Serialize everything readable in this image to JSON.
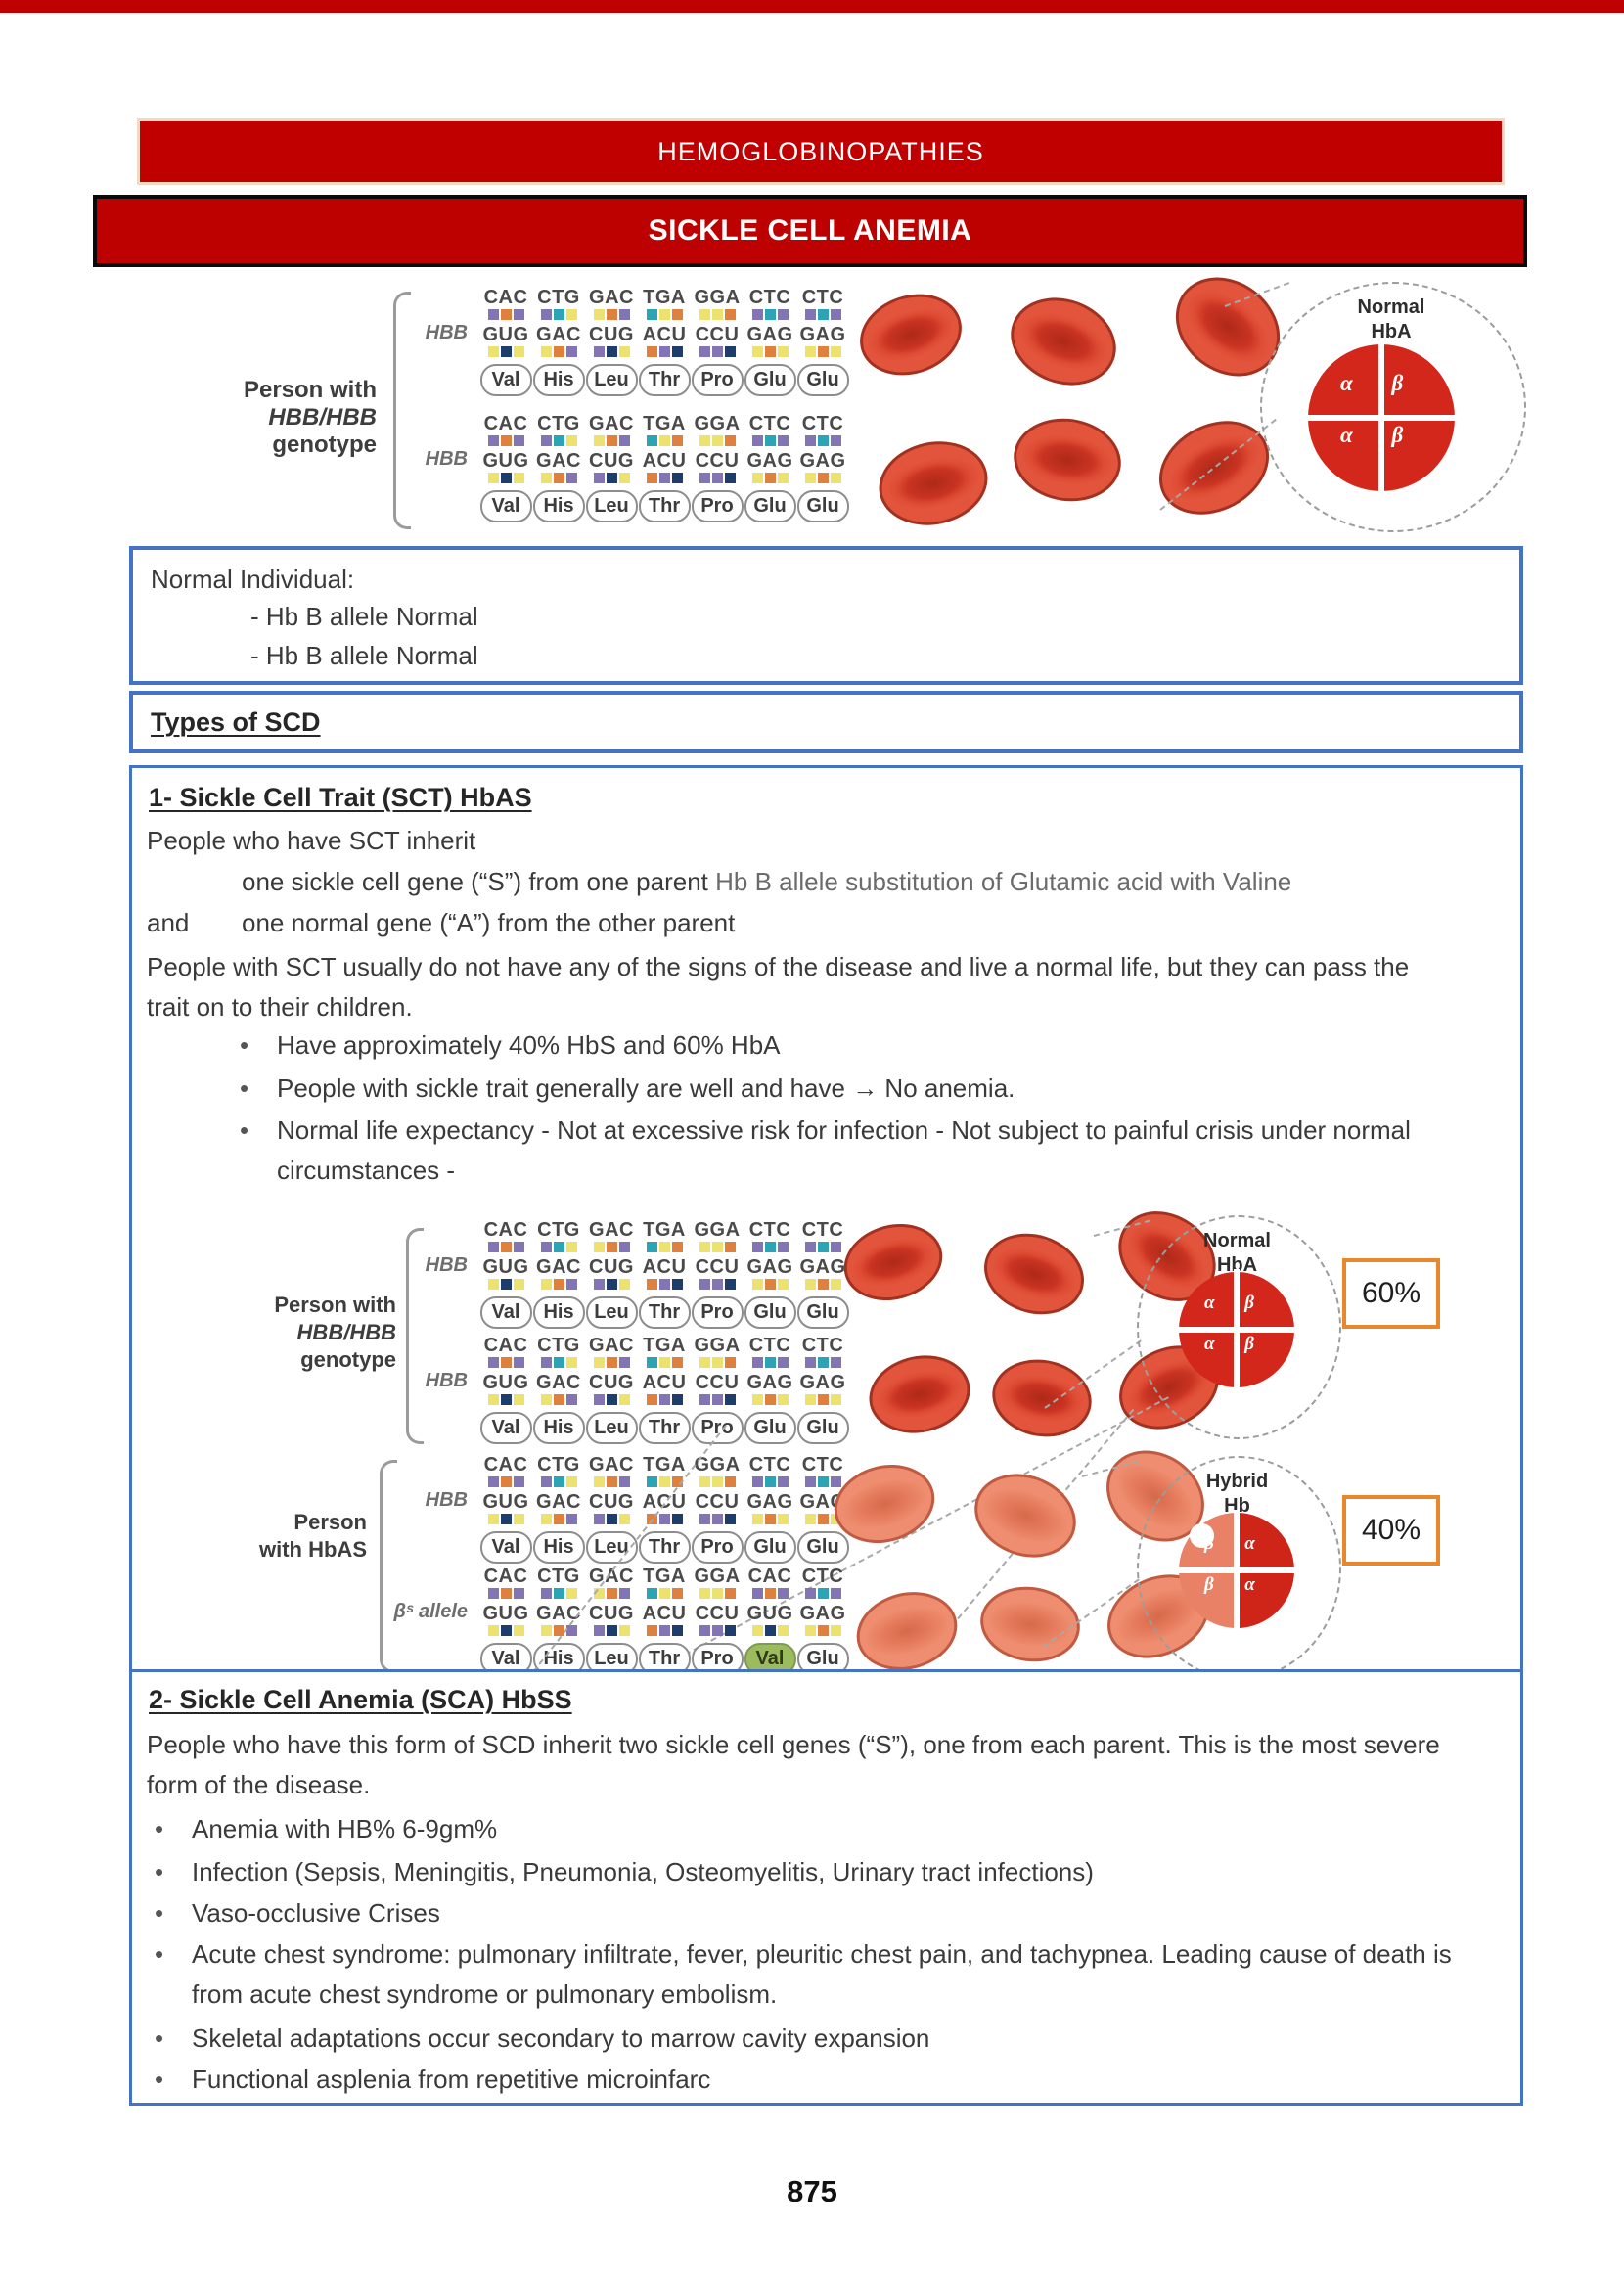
{
  "ui": {
    "bullet": "•"
  },
  "page": {
    "number": "875"
  },
  "banner": {
    "title": "HEMOGLOBINOPATHIES"
  },
  "title_bar": {
    "title": "SICKLE CELL ANEMIA"
  },
  "normal_box": {
    "line1": "Normal Individual:",
    "line2": "- Hb B allele Normal",
    "line3": "- Hb B allele Normal"
  },
  "types_box": {
    "title": "Types of SCD"
  },
  "genetics": {
    "nucleotide_colors": {
      "A": "#DF813C",
      "C": "#8374B6",
      "G": "#EDE26E",
      "T": "#2BA4B6",
      "U": "#1D3E6C"
    },
    "allele_normal": {
      "gene": "HBB",
      "dna": [
        "CAC",
        "CTG",
        "GAC",
        "TGA",
        "GGA",
        "CTC",
        "CTC"
      ],
      "rna": [
        "GUG",
        "GAC",
        "CUG",
        "ACU",
        "CCU",
        "GAG",
        "GAG"
      ],
      "aa": [
        "Val",
        "His",
        "Leu",
        "Thr",
        "Pro",
        "Glu",
        "Glu"
      ],
      "highlight": -1
    },
    "allele_sickle": {
      "gene": "βˢ allele",
      "dna": [
        "CAC",
        "CTG",
        "GAC",
        "TGA",
        "GGA",
        "CAC",
        "CTC"
      ],
      "rna": [
        "GUG",
        "GAC",
        "CUG",
        "ACU",
        "CCU",
        "GUG",
        "GAG"
      ],
      "aa": [
        "Val",
        "His",
        "Leu",
        "Thr",
        "Pro",
        "Val",
        "Glu"
      ],
      "highlight": 5
    },
    "person_hbb": [
      "Person with",
      "HBB/HBB",
      "genotype"
    ],
    "person_hbas": [
      "Person",
      "with HbAS"
    ],
    "normal_hb": {
      "label_line1": "Normal",
      "label_line2": "HbA",
      "subunits": [
        "α",
        "β",
        "α",
        "β"
      ]
    },
    "hybrid_hb": {
      "label_line1": "Hybrid",
      "label_line2": "Hb",
      "subunits": [
        "β",
        "α",
        "β",
        "α"
      ]
    }
  },
  "section1": {
    "heading": "1- Sickle Cell Trait (SCT) HbAS",
    "para1": "People who have SCT inherit",
    "inherit_black": "one sickle cell gene (“S”) from one parent ",
    "inherit_gray": "Hb B allele substitution of Glutamic acid with Valine",
    "and_word": "and",
    "and_rest": "one normal gene (“A”) from the other parent",
    "para2": "People with SCT usually do not have any of the signs of the disease and live a normal life, but they can pass the trait on to their children.",
    "bullets": [
      "Have approximately 40% HbS and 60% HbA",
      "People with sickle trait generally are well and have → No anemia.",
      "Normal life expectancy - Not at excessive risk for infection - Not subject to painful crisis under normal circumstances -"
    ],
    "diagram": {
      "hba_pct": "60%",
      "hbs_pct": "40%"
    }
  },
  "section2": {
    "heading": "2- Sickle Cell Anemia (SCA) HbSS",
    "para": "People who have this form of SCD inherit two sickle cell genes (“S”), one from each parent. This is the most severe form of the disease.",
    "bullets": [
      "Anemia with HB% 6-9gm%",
      "Infection (Sepsis, Meningitis, Pneumonia, Osteomyelitis, Urinary tract infections)",
      "Vaso-occlusive Crises",
      "Acute chest syndrome: pulmonary infiltrate, fever, pleuritic chest pain, and tachypnea. Leading cause of death is from acute chest syndrome or pulmonary embolism.",
      "Skeletal adaptations occur secondary to marrow cavity expansion",
      "Functional asplenia from repetitive microinfarc"
    ]
  }
}
